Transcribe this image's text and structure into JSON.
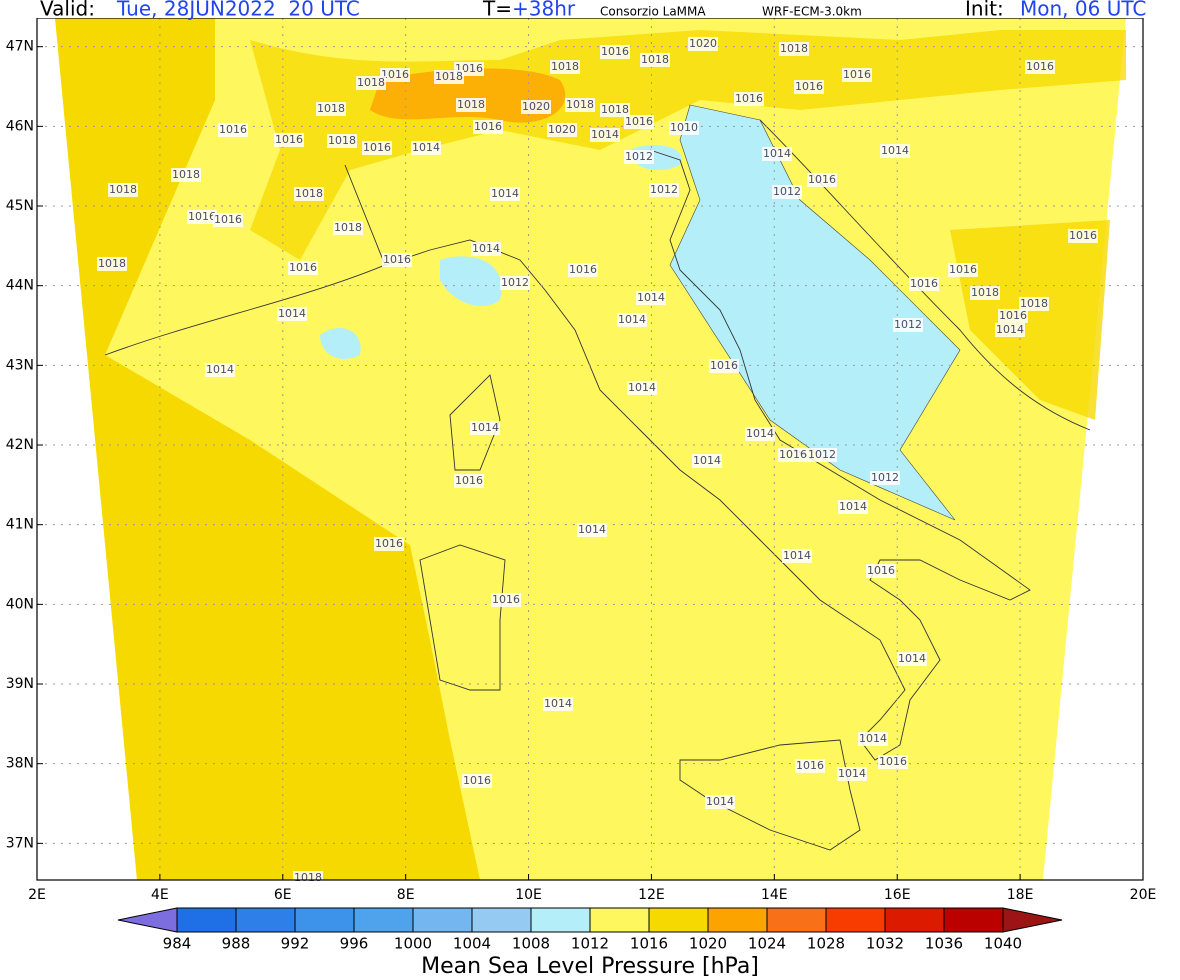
{
  "header": {
    "valid_label": "Valid:",
    "valid_value": "Tue, 28JUN2022  20 UTC",
    "t_label": "T=",
    "t_value": "+38hr",
    "source": "Consorzio LaMMA",
    "model": "WRF-ECM-3.0km",
    "init_label": "Init:",
    "init_value": "Mon, 06 UTC"
  },
  "map": {
    "lon_range": [
      2,
      20
    ],
    "lat_range": [
      36.54,
      47.36
    ],
    "lon_ticks": [
      {
        "value": 2,
        "label": "2E"
      },
      {
        "value": 4,
        "label": "4E"
      },
      {
        "value": 6,
        "label": "6E"
      },
      {
        "value": 8,
        "label": "8E"
      },
      {
        "value": 10,
        "label": "10E"
      },
      {
        "value": 12,
        "label": "12E"
      },
      {
        "value": 14,
        "label": "14E"
      },
      {
        "value": 16,
        "label": "16E"
      },
      {
        "value": 18,
        "label": "18E"
      },
      {
        "value": 20,
        "label": "20E"
      }
    ],
    "lat_ticks": [
      {
        "value": 37,
        "label": "37N"
      },
      {
        "value": 38,
        "label": "38N"
      },
      {
        "value": 39,
        "label": "39N"
      },
      {
        "value": 40,
        "label": "40N"
      },
      {
        "value": 41,
        "label": "41N"
      },
      {
        "value": 42,
        "label": "42N"
      },
      {
        "value": 43,
        "label": "43N"
      },
      {
        "value": 44,
        "label": "44N"
      },
      {
        "value": 45,
        "label": "45N"
      },
      {
        "value": 46,
        "label": "46N"
      },
      {
        "value": 47,
        "label": "47N"
      }
    ],
    "contour_labels": [
      1016,
      1016,
      1018,
      1018,
      1016,
      1016,
      1018,
      1016,
      1014,
      1014,
      1016,
      1014,
      1012,
      1016,
      1014,
      1014,
      1014,
      1016,
      1014,
      1014,
      1016,
      1012,
      1012,
      1014,
      1014,
      1016,
      1014,
      1014,
      1016,
      1014,
      1016,
      1014,
      1014,
      1016,
      1016,
      1016,
      1016,
      1014,
      1014,
      1012,
      1012,
      1010,
      1012,
      1016,
      1012,
      1014,
      1014,
      1016,
      1016,
      1016,
      1018,
      1020,
      1018,
      1016,
      1018,
      1016,
      1018,
      1016,
      1018,
      1018,
      1018,
      1016,
      1014,
      1014,
      1016,
      1018,
      1020,
      1018,
      1020,
      1014,
      1018,
      1016,
      1016,
      1016,
      1016,
      1016,
      1018,
      1018,
      1016,
      1014,
      1018,
      1018,
      1018
    ]
  },
  "colorbar": {
    "title": "Mean Sea Level Pressure [hPa]",
    "levels": [
      984,
      988,
      992,
      996,
      1000,
      1004,
      1008,
      1012,
      1016,
      1020,
      1024,
      1028,
      1032,
      1036,
      1040
    ],
    "colors": [
      "#7d6ee0",
      "#1f6fe6",
      "#2e80e8",
      "#3d92ea",
      "#4fa3ec",
      "#74b7f0",
      "#95cbf3",
      "#b4eef8",
      "#fff75e",
      "#f6d900",
      "#fca300",
      "#f87018",
      "#f83c00",
      "#dc1a00",
      "#bb0000",
      "#9c1414"
    ]
  }
}
